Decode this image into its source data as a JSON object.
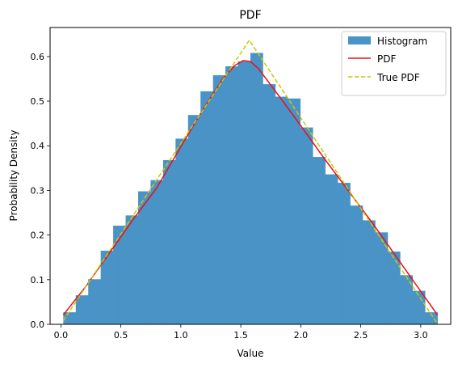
{
  "chart_data": {
    "type": "bar",
    "title": "PDF",
    "xlabel": "Value",
    "ylabel": "Probability Density",
    "xlim": [
      -0.09,
      3.25
    ],
    "ylim": [
      0.0,
      0.665
    ],
    "x_ticks": [
      "0.0",
      "0.5",
      "1.0",
      "1.5",
      "2.0",
      "2.5",
      "3.0"
    ],
    "x_tick_values": [
      0.0,
      0.5,
      1.0,
      1.5,
      2.0,
      2.5,
      3.0
    ],
    "y_ticks": [
      "0.0",
      "0.1",
      "0.2",
      "0.3",
      "0.4",
      "0.5",
      "0.6"
    ],
    "y_tick_values": [
      0.0,
      0.1,
      0.2,
      0.3,
      0.4,
      0.5,
      0.6
    ],
    "grid": false,
    "legend_position": "top-right",
    "histogram": {
      "name": "Histogram",
      "color": "#4a93c7",
      "bin_edges": [
        0.02,
        0.124,
        0.228,
        0.332,
        0.436,
        0.54,
        0.644,
        0.748,
        0.852,
        0.956,
        1.06,
        1.164,
        1.268,
        1.372,
        1.476,
        1.58,
        1.684,
        1.788,
        1.892,
        1.996,
        2.1,
        2.204,
        2.308,
        2.412,
        2.516,
        2.62,
        2.724,
        2.828,
        2.932,
        3.036,
        3.14
      ],
      "values": [
        0.027,
        0.065,
        0.101,
        0.165,
        0.221,
        0.244,
        0.298,
        0.323,
        0.368,
        0.416,
        0.469,
        0.522,
        0.558,
        0.578,
        0.589,
        0.608,
        0.538,
        0.51,
        0.506,
        0.441,
        0.375,
        0.336,
        0.317,
        0.266,
        0.233,
        0.206,
        0.163,
        0.11,
        0.075,
        0.027
      ]
    },
    "series": [
      {
        "name": "PDF",
        "color": "#e8101a",
        "style": "solid",
        "x": [
          0.02,
          0.2,
          0.4,
          0.6,
          0.8,
          1.0,
          1.2,
          1.35,
          1.45,
          1.52,
          1.58,
          1.65,
          1.75,
          1.85,
          2.0,
          2.2,
          2.4,
          2.6,
          2.8,
          3.0,
          3.14
        ],
        "y": [
          0.021,
          0.082,
          0.158,
          0.234,
          0.306,
          0.398,
          0.488,
          0.55,
          0.58,
          0.591,
          0.589,
          0.572,
          0.536,
          0.5,
          0.445,
          0.37,
          0.298,
          0.226,
          0.15,
          0.074,
          0.021
        ]
      },
      {
        "name": "True PDF",
        "color": "#c8c80a",
        "style": "dashed",
        "x": [
          0.02,
          1.5708,
          3.14
        ],
        "y": [
          0.008,
          0.6366,
          0.001
        ]
      }
    ]
  }
}
